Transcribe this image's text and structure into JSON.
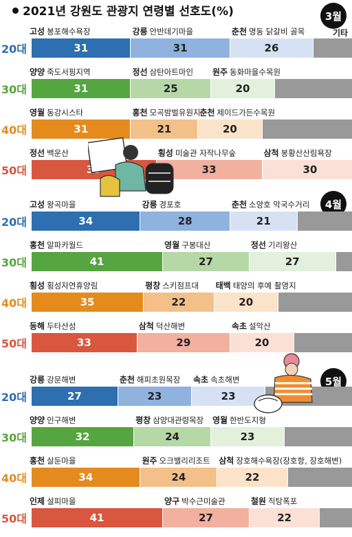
{
  "title": "2021년 강원도 관광지 연령별 선호도(%)",
  "other_label": "기타",
  "colors": {
    "20대": [
      "#2d6fb0",
      "#8fb2de",
      "#d6e2f4",
      "#999999"
    ],
    "30대": [
      "#55a540",
      "#b5d8a6",
      "#e2f0dc",
      "#999999"
    ],
    "40대": [
      "#e58b1e",
      "#f3c08a",
      "#fbe3c9",
      "#999999"
    ],
    "50대": [
      "#d9563f",
      "#f2b09f",
      "#fbe0d6",
      "#999999"
    ]
  },
  "age_colors": {
    "20대": "#2d6fb0",
    "30대": "#55a540",
    "40대": "#e58b1e",
    "50대": "#d9563f"
  },
  "chart_data": {
    "type": "bar",
    "stacked": true,
    "unit": "%",
    "title": "2021년 강원도 관광지 연령별 선호도(%)",
    "months": [
      {
        "month": "3월",
        "groups": [
          {
            "age": "20대",
            "segments": [
              {
                "region": "고성",
                "place": "봉포해수욕장",
                "value": 31
              },
              {
                "region": "강릉",
                "place": "안반데기마을",
                "value": 31
              },
              {
                "region": "춘천",
                "place": "명동 닭갈비 골목",
                "value": 26
              }
            ]
          },
          {
            "age": "30대",
            "segments": [
              {
                "region": "양양",
                "place": "죽도서핑지역",
                "value": 31
              },
              {
                "region": "정선",
                "place": "삼탄아트마인",
                "value": 25
              },
              {
                "region": "원주",
                "place": "동화마을수목원",
                "value": 20
              }
            ]
          },
          {
            "age": "40대",
            "segments": [
              {
                "region": "영월",
                "place": "동강시스타",
                "value": 31
              },
              {
                "region": "홍천",
                "place": "모곡밤벌유원지",
                "value": 21
              },
              {
                "region": "춘천",
                "place": "제이드가든수목원",
                "value": 20
              }
            ]
          },
          {
            "age": "50대",
            "segments": [
              {
                "region": "정선",
                "place": "백운산",
                "value": 39
              },
              {
                "region": "횡성",
                "place": "미술관 자작나무숲",
                "value": 33
              },
              {
                "region": "삼척",
                "place": "봉황산산림욕장",
                "value": 30
              }
            ]
          }
        ]
      },
      {
        "month": "4월",
        "groups": [
          {
            "age": "20대",
            "segments": [
              {
                "region": "고성",
                "place": "왕곡마을",
                "value": 34
              },
              {
                "region": "강릉",
                "place": "경포호",
                "value": 28
              },
              {
                "region": "춘천",
                "place": "소양호 막국수거리",
                "value": 21
              }
            ]
          },
          {
            "age": "30대",
            "segments": [
              {
                "region": "홍천",
                "place": "알파카월드",
                "value": 41
              },
              {
                "region": "영월",
                "place": "구봉대산",
                "value": 27
              },
              {
                "region": "정선",
                "place": "기리왕산",
                "value": 27
              }
            ]
          },
          {
            "age": "40대",
            "segments": [
              {
                "region": "횡성",
                "place": "횡성자연휴양림",
                "value": 35
              },
              {
                "region": "평창",
                "place": "스키점프대",
                "value": 22
              },
              {
                "region": "태백",
                "place": "태양의 후예 촬영지",
                "value": 20
              }
            ]
          },
          {
            "age": "50대",
            "segments": [
              {
                "region": "동해",
                "place": "두타산성",
                "value": 33
              },
              {
                "region": "삼척",
                "place": "덕산해변",
                "value": 29
              },
              {
                "region": "속초",
                "place": "설악산",
                "value": 20
              }
            ]
          }
        ]
      },
      {
        "month": "5월",
        "groups": [
          {
            "age": "20대",
            "segments": [
              {
                "region": "강릉",
                "place": "강문해변",
                "value": 27
              },
              {
                "region": "춘천",
                "place": "해피초원목장",
                "value": 23
              },
              {
                "region": "속초",
                "place": "속초해변",
                "value": 23
              }
            ]
          },
          {
            "age": "30대",
            "segments": [
              {
                "region": "양양",
                "place": "인구해변",
                "value": 32
              },
              {
                "region": "평창",
                "place": "삼양대관령목장",
                "value": 24
              },
              {
                "region": "영월",
                "place": "한반도지형",
                "value": 23
              }
            ]
          },
          {
            "age": "40대",
            "segments": [
              {
                "region": "홍천",
                "place": "살둔마을",
                "value": 34
              },
              {
                "region": "원주",
                "place": "오크밸리리조트",
                "value": 24
              },
              {
                "region": "삼척",
                "place": "장호해수욕장(장호항, 장호해변)",
                "value": 22
              }
            ]
          },
          {
            "age": "50대",
            "segments": [
              {
                "region": "인제",
                "place": "설피마을",
                "value": 41
              },
              {
                "region": "양구",
                "place": "박수근미술관",
                "value": 27
              },
              {
                "region": "철원",
                "place": "직탕폭포",
                "value": 22
              }
            ]
          }
        ]
      }
    ]
  }
}
